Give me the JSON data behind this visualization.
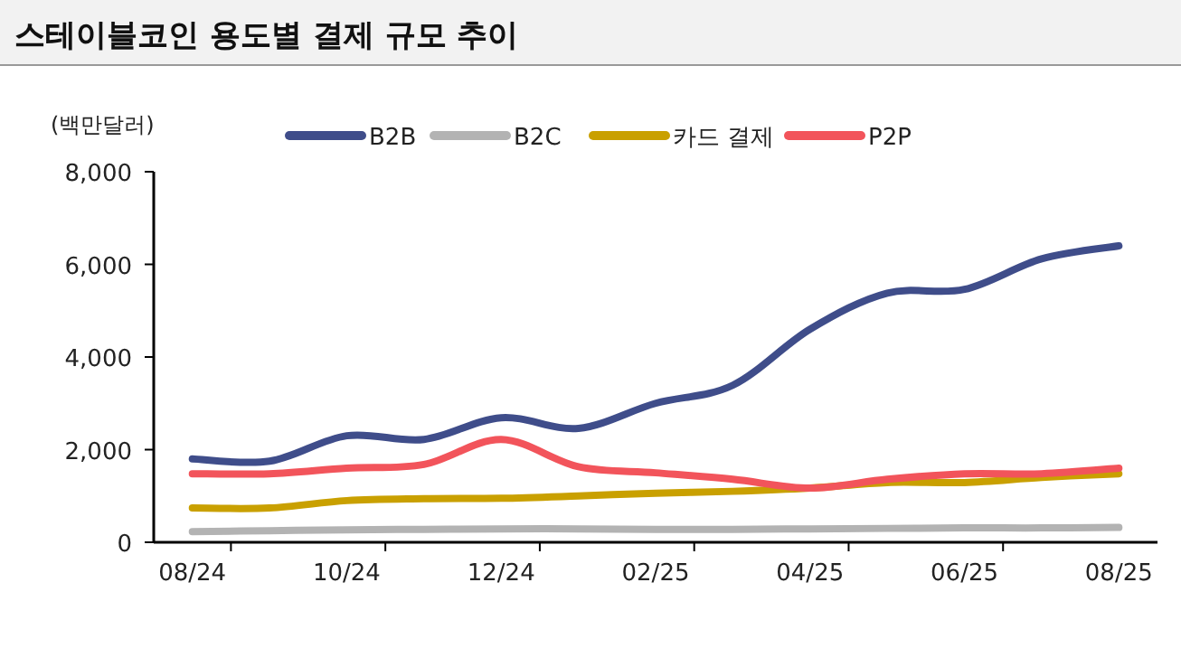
{
  "chart_data": {
    "type": "line",
    "title": "스테이블코인 용도별 결제 규모 추이",
    "ylabel": "(백만달러)",
    "categories": [
      "08/24",
      null,
      "10/24",
      null,
      "12/24",
      null,
      "02/25",
      null,
      "04/25",
      null,
      "06/25",
      null,
      "08/25"
    ],
    "series": [
      {
        "name": "B2B",
        "color": "#3f4d8a",
        "values": [
          1800,
          1750,
          2300,
          2220,
          2690,
          2460,
          3000,
          3390,
          4600,
          5380,
          5460,
          6120,
          6400
        ]
      },
      {
        "name": "B2C",
        "color": "#b3b3b3",
        "values": [
          230,
          250,
          270,
          280,
          290,
          290,
          280,
          280,
          290,
          300,
          310,
          310,
          320
        ]
      },
      {
        "name": "카드 결제",
        "color": "#c9a000",
        "values": [
          740,
          740,
          900,
          940,
          950,
          1000,
          1060,
          1100,
          1170,
          1290,
          1290,
          1400,
          1480
        ]
      },
      {
        "name": "P2P",
        "color": "#f2545b",
        "values": [
          1480,
          1480,
          1600,
          1680,
          2220,
          1630,
          1500,
          1360,
          1170,
          1360,
          1480,
          1480,
          1600
        ]
      }
    ],
    "ylim": [
      0,
      8000
    ],
    "yticks": [
      {
        "value": 0,
        "label": "0"
      },
      {
        "value": 2000,
        "label": "2,000"
      },
      {
        "value": 4000,
        "label": "4,000"
      },
      {
        "value": 6000,
        "label": "6,000"
      },
      {
        "value": 8000,
        "label": "8,000"
      }
    ],
    "legend": "top",
    "grid": false,
    "marker": "none",
    "line_style": "solid"
  }
}
